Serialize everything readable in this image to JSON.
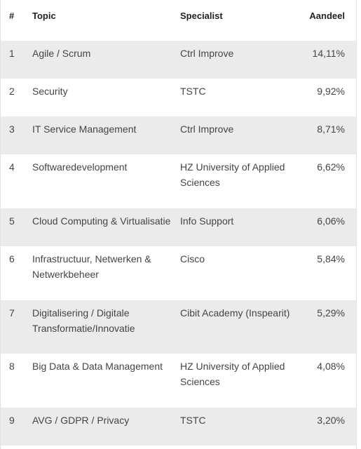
{
  "table": {
    "headers": {
      "num": "#",
      "topic": "Topic",
      "specialist": "Specialist",
      "share": "Aandeel"
    },
    "rows": [
      {
        "num": "1",
        "topic": "Agile / Scrum",
        "specialist": "Ctrl Improve",
        "share": "14,11%"
      },
      {
        "num": "2",
        "topic": "Security",
        "specialist": "TSTC",
        "share": "9,92%"
      },
      {
        "num": "3",
        "topic": "IT Service Management",
        "specialist": "Ctrl Improve",
        "share": "8,71%"
      },
      {
        "num": "4",
        "topic": "Softwaredevelopment",
        "specialist": "HZ University of Applied Sciences",
        "share": "6,62%"
      },
      {
        "num": "5",
        "topic": "Cloud Computing & Virtualisatie",
        "specialist": "Info Support",
        "share": "6,06%"
      },
      {
        "num": "6",
        "topic": "Infrastructuur, Netwerken & Netwerkbeheer",
        "specialist": "Cisco",
        "share": "5,84%"
      },
      {
        "num": "7",
        "topic": "Digitalisering / Digitale Transformatie/Innovatie",
        "specialist": "Cibit Academy (Inspearit)",
        "share": "5,29%"
      },
      {
        "num": "8",
        "topic": "Big Data & Data Management",
        "specialist": "HZ University of Applied Sciences",
        "share": "4,08%"
      },
      {
        "num": "9",
        "topic": "AVG / GDPR / Privacy",
        "specialist": "TSTC",
        "share": "3,20%"
      }
    ]
  },
  "colors": {
    "row_shade": "#ebebeb",
    "text": "#444444",
    "header_text": "#222222"
  }
}
